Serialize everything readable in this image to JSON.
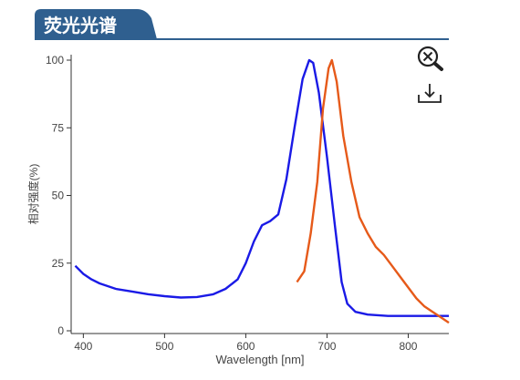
{
  "header": {
    "title": "荧光光谱",
    "tab_color": "#2f5f8f",
    "rule_color": "#2f5f8f"
  },
  "toolbar": {
    "zoom_icon": "zoom-reset-icon",
    "download_icon": "download-icon"
  },
  "colors": {
    "axis": "#333333",
    "tick_text": "#444444"
  },
  "chart_data": {
    "type": "line",
    "xlabel": "Wavelength [nm]",
    "ylabel": "相对强度(%)",
    "xlim": [
      385,
      850
    ],
    "ylim": [
      0,
      100
    ],
    "xticks": [
      400,
      500,
      600,
      700,
      800
    ],
    "yticks": [
      0,
      25,
      50,
      75,
      100
    ],
    "grid": false,
    "series": [
      {
        "color": "#1a1ae6",
        "points": [
          [
            390,
            24
          ],
          [
            400,
            21
          ],
          [
            410,
            19
          ],
          [
            420,
            17.5
          ],
          [
            440,
            15.5
          ],
          [
            460,
            14.5
          ],
          [
            480,
            13.5
          ],
          [
            500,
            12.8
          ],
          [
            520,
            12.3
          ],
          [
            540,
            12.5
          ],
          [
            560,
            13.5
          ],
          [
            575,
            15.5
          ],
          [
            590,
            19
          ],
          [
            600,
            25
          ],
          [
            610,
            33
          ],
          [
            620,
            39
          ],
          [
            630,
            40.5
          ],
          [
            640,
            43
          ],
          [
            650,
            56
          ],
          [
            660,
            75
          ],
          [
            670,
            93
          ],
          [
            678,
            100
          ],
          [
            683,
            99
          ],
          [
            690,
            88
          ],
          [
            700,
            64
          ],
          [
            710,
            38
          ],
          [
            718,
            18
          ],
          [
            725,
            10
          ],
          [
            735,
            7
          ],
          [
            750,
            6
          ],
          [
            775,
            5.5
          ],
          [
            800,
            5.5
          ],
          [
            825,
            5.5
          ],
          [
            850,
            5.5
          ]
        ]
      },
      {
        "color": "#e65a1a",
        "points": [
          [
            663,
            18
          ],
          [
            672,
            22
          ],
          [
            680,
            36
          ],
          [
            688,
            55
          ],
          [
            695,
            82
          ],
          [
            702,
            97
          ],
          [
            706,
            100
          ],
          [
            712,
            92
          ],
          [
            720,
            72
          ],
          [
            730,
            55
          ],
          [
            740,
            42
          ],
          [
            750,
            36
          ],
          [
            760,
            31
          ],
          [
            770,
            28
          ],
          [
            780,
            24
          ],
          [
            790,
            20
          ],
          [
            800,
            16
          ],
          [
            810,
            12
          ],
          [
            820,
            9
          ],
          [
            830,
            7
          ],
          [
            840,
            5
          ],
          [
            850,
            3
          ]
        ]
      }
    ]
  }
}
